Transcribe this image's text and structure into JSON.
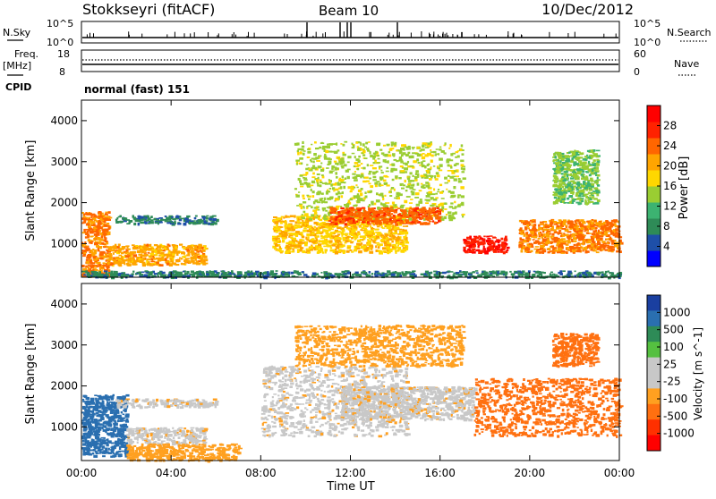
{
  "header": {
    "station": "Stokkseyri (fitACF)",
    "beam": "Beam 10",
    "date": "10/Dec/2012"
  },
  "nsky_panel": {
    "left_label": "N.Sky",
    "right_label": "N.Search",
    "left_ticks": [
      "10^5",
      "10^0"
    ],
    "right_ticks": [
      "10^5",
      "10^0"
    ]
  },
  "freq_panel": {
    "left_label_1": "Freq.",
    "left_label_2": "[MHz]",
    "right_label": "Nave",
    "left_ticks": [
      "18",
      "8"
    ],
    "right_ticks": [
      "60",
      "0"
    ]
  },
  "cpid": {
    "label": "CPID",
    "mode": "normal (fast) 151"
  },
  "colors": {
    "power_scale": [
      "#0000ff",
      "#1e4fa8",
      "#2e8b57",
      "#3cb371",
      "#9acd32",
      "#ffd700",
      "#ffa500",
      "#ff6600",
      "#ff2200",
      "#ff0000"
    ],
    "velocity_scale": [
      "#1a3fa0",
      "#2a6fb0",
      "#2e8b57",
      "#55c040",
      "#c8c8c8",
      "#c8c8c8",
      "#ffa020",
      "#ff7010",
      "#ff3000",
      "#ff0000"
    ],
    "velocity_gray": "#c8c8c8"
  },
  "chart_data": [
    {
      "type": "heatmap",
      "title": "",
      "xlabel": "",
      "ylabel": "Slant Range [km]",
      "xlim": [
        0,
        24
      ],
      "ylim": [
        180,
        4500
      ],
      "x_ticks": [
        "00:00",
        "04:00",
        "08:00",
        "12:00",
        "16:00",
        "20:00",
        "00:00"
      ],
      "y_ticks": [
        1000,
        2000,
        3000,
        4000
      ],
      "colorbar": {
        "label": "Power [dB]",
        "ticks": [
          "4",
          "8",
          "12",
          "16",
          "20",
          "24",
          "28"
        ],
        "min": 0,
        "max": 30
      },
      "regions": [
        {
          "t0": 0.0,
          "t1": 1.2,
          "r0": 200,
          "r1": 1800,
          "value": 22
        },
        {
          "t0": 1.2,
          "t1": 5.5,
          "r0": 500,
          "r1": 1000,
          "value": 20
        },
        {
          "t0": 1.5,
          "t1": 6.0,
          "r0": 1500,
          "r1": 1700,
          "value": 6
        },
        {
          "t0": 0.0,
          "t1": 24.0,
          "r0": 200,
          "r1": 350,
          "value": 6
        },
        {
          "t0": 8.5,
          "t1": 14.5,
          "r0": 800,
          "r1": 1700,
          "value": 18
        },
        {
          "t0": 9.5,
          "t1": 17.0,
          "r0": 1600,
          "r1": 3500,
          "value": 14
        },
        {
          "t0": 11.0,
          "t1": 16.0,
          "r0": 1500,
          "r1": 1900,
          "value": 24
        },
        {
          "t0": 17.0,
          "t1": 19.0,
          "r0": 800,
          "r1": 1200,
          "value": 28
        },
        {
          "t0": 19.5,
          "t1": 24.0,
          "r0": 800,
          "r1": 1600,
          "value": 22
        },
        {
          "t0": 21.0,
          "t1": 23.0,
          "r0": 2000,
          "r1": 3300,
          "value": 12
        }
      ]
    },
    {
      "type": "heatmap",
      "title": "",
      "xlabel": "Time UT",
      "ylabel": "Slant Range [km]",
      "xlim": [
        0,
        24
      ],
      "ylim": [
        180,
        4500
      ],
      "x_ticks": [
        "00:00",
        "04:00",
        "08:00",
        "12:00",
        "16:00",
        "20:00",
        "00:00"
      ],
      "y_ticks": [
        1000,
        2000,
        3000,
        4000
      ],
      "colorbar": {
        "label": "Velocity [m s^-1]",
        "ticks": [
          "1000",
          "500",
          "100",
          "25",
          "-25",
          "-100",
          "-500",
          "-1000"
        ]
      },
      "regions": [
        {
          "t0": 0.0,
          "t1": 2.0,
          "r0": 300,
          "r1": 1800,
          "value": 100
        },
        {
          "t0": 2.0,
          "t1": 5.5,
          "r0": 600,
          "r1": 1000,
          "value": 0
        },
        {
          "t0": 1.5,
          "t1": 6.0,
          "r0": 1500,
          "r1": 1700,
          "value": 0
        },
        {
          "t0": 2.0,
          "t1": 7.0,
          "r0": 200,
          "r1": 600,
          "value": -80
        },
        {
          "t0": 8.0,
          "t1": 14.5,
          "r0": 800,
          "r1": 2500,
          "value": 0
        },
        {
          "t0": 9.5,
          "t1": 17.0,
          "r0": 2500,
          "r1": 3500,
          "value": -50
        },
        {
          "t0": 11.5,
          "t1": 17.5,
          "r0": 1200,
          "r1": 2000,
          "value": 0
        },
        {
          "t0": 17.5,
          "t1": 24.0,
          "r0": 800,
          "r1": 2200,
          "value": -300
        },
        {
          "t0": 21.0,
          "t1": 23.0,
          "r0": 2500,
          "r1": 3300,
          "value": -100
        }
      ]
    }
  ]
}
